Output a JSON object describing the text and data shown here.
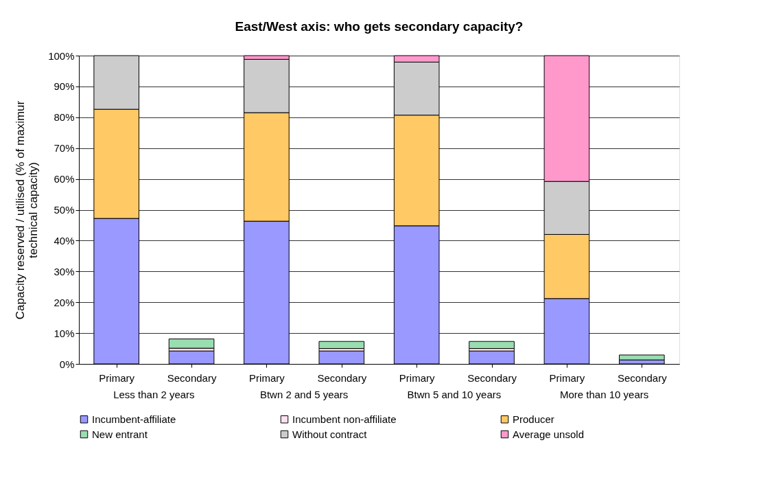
{
  "chart_data": {
    "type": "bar",
    "stacked": true,
    "title": "East/West axis: who gets secondary capacity?",
    "ylabel": "Capacity reserved / utilised (% of maximur\ntechnical capacity)",
    "categories": [
      "Primary",
      "Secondary",
      "Primary",
      "Secondary",
      "Primary",
      "Secondary",
      "Primary",
      "Secondary"
    ],
    "annotations": [
      "Less than 2 years",
      "Btwn 2 and 5 years",
      "Btwn 5 and 10 years",
      "More than 10 years"
    ],
    "series": [
      {
        "name": "Incumbent-affiliate",
        "color": "#9999ff",
        "values": [
          47.2,
          4.2,
          46.3,
          4.2,
          44.8,
          4.2,
          21.2,
          1.3
        ]
      },
      {
        "name": "Incumbent non-affiliate",
        "color": "#ffe0f0",
        "values": [
          0,
          0.9,
          0,
          0.8,
          0,
          0.8,
          0,
          0
        ]
      },
      {
        "name": "Producer",
        "color": "#ffc966",
        "values": [
          35.4,
          0,
          35.2,
          0,
          35.9,
          0,
          20.8,
          0
        ]
      },
      {
        "name": "New entrant",
        "color": "#99ddb0",
        "values": [
          0,
          3.0,
          0,
          2.3,
          0,
          2.3,
          0,
          1.6
        ]
      },
      {
        "name": "Without contract",
        "color": "#cccccc",
        "values": [
          17.4,
          0,
          17.3,
          0,
          17.2,
          0,
          17.2,
          0
        ]
      },
      {
        "name": "Average unsold",
        "color": "#ff99cc",
        "values": [
          0,
          0,
          1.2,
          0,
          2.1,
          0,
          40.8,
          0
        ]
      }
    ],
    "ylim": [
      0,
      100
    ],
    "yticks": [
      {
        "value": 0,
        "label": "0%"
      },
      {
        "value": 10,
        "label": "10%"
      },
      {
        "value": 20,
        "label": "20%"
      },
      {
        "value": 30,
        "label": "30%"
      },
      {
        "value": 40,
        "label": "40%"
      },
      {
        "value": 50,
        "label": "50%"
      },
      {
        "value": 60,
        "label": "60%"
      },
      {
        "value": 70,
        "label": "70%"
      },
      {
        "value": 80,
        "label": "80%"
      },
      {
        "value": 90,
        "label": "90%"
      },
      {
        "value": 100,
        "label": "100%"
      }
    ],
    "grid": "y",
    "legend": "bottom"
  }
}
